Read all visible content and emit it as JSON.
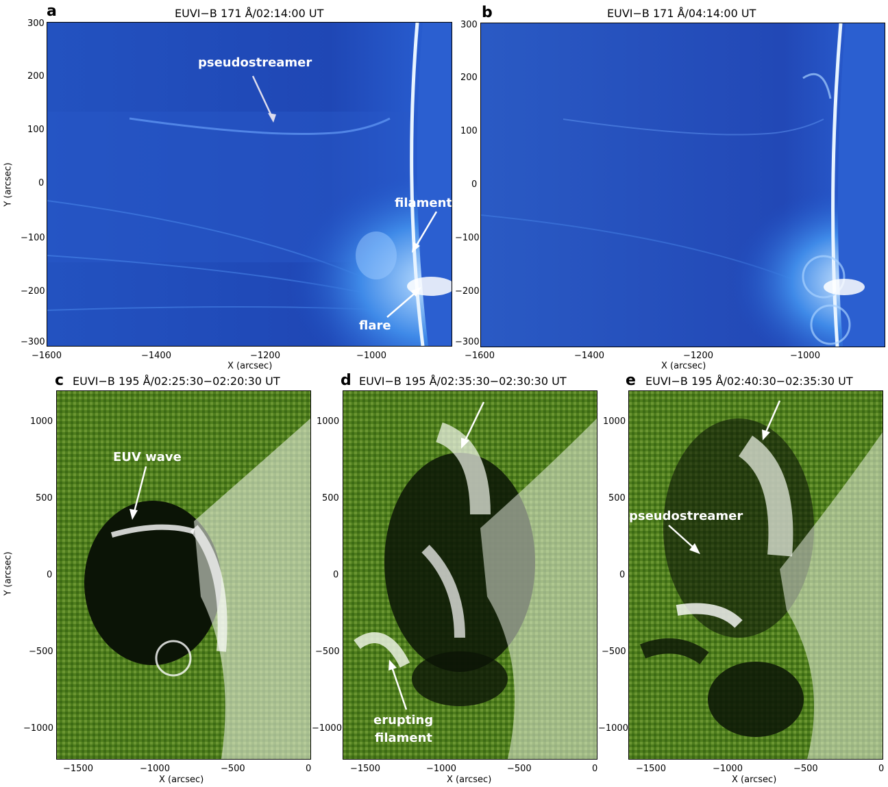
{
  "panels": {
    "a": {
      "letter": "a",
      "title": "EUVI−B 171 Å/02:14:00 UT",
      "yticks": [
        "300",
        "200",
        "100",
        "0",
        "−100",
        "−200",
        "−300"
      ],
      "xticks": [
        "−1600",
        "−1400",
        "−1200",
        "−1000"
      ],
      "xlabel": "X (arcsec)",
      "ylabel": "Y (arcsec)",
      "annotations": {
        "pseudostreamer": "pseudostreamer",
        "filament": "filament",
        "flare": "flare"
      }
    },
    "b": {
      "letter": "b",
      "title": "EUVI−B 171 Å/04:14:00 UT",
      "yticks": [
        "300",
        "200",
        "100",
        "0",
        "−100",
        "−200",
        "−300"
      ],
      "xticks": [
        "−1600",
        "−1400",
        "−1200",
        "−1000"
      ],
      "xlabel": "X (arcsec)"
    },
    "c": {
      "letter": "c",
      "title": "EUVI−B 195 Å/02:25:30−02:20:30 UT",
      "yticks": [
        "1000",
        "500",
        "0",
        "−500",
        "−1000"
      ],
      "xticks": [
        "−1500",
        "−1000",
        "−500",
        "0"
      ],
      "xlabel": "X (arcsec)",
      "ylabel": "Y (arcsec)",
      "annotations": {
        "wave": "EUV wave"
      }
    },
    "d": {
      "letter": "d",
      "title": "EUVI−B 195 Å/02:35:30−02:30:30 UT",
      "yticks": [
        "1000",
        "500",
        "0",
        "−500",
        "−1000"
      ],
      "xticks": [
        "−1500",
        "−1000",
        "−500",
        "0"
      ],
      "xlabel": "X (arcsec)",
      "annotations": {
        "erupting1": "erupting",
        "erupting2": "filament"
      }
    },
    "e": {
      "letter": "e",
      "title": "EUVI−B 195 Å/02:40:30−02:35:30 UT",
      "yticks": [
        "1000",
        "500",
        "0",
        "−500",
        "−1000"
      ],
      "xticks": [
        "−1500",
        "−1000",
        "−500",
        "0"
      ],
      "xlabel": "X (arcsec)",
      "annotations": {
        "pseudostreamer": "pseudostreamer"
      }
    }
  },
  "colors": {
    "euv171": "#1f4fc4",
    "euv195": "#4e7d1d"
  }
}
